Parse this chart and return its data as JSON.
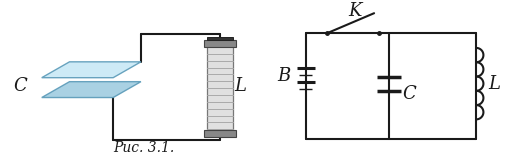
{
  "fig_width": 5.19,
  "fig_height": 1.65,
  "dpi": 100,
  "background": "#ffffff",
  "caption": "Рис. 3.1.",
  "caption_fontsize": 10,
  "label_C_left": "C",
  "label_L_left": "L",
  "label_B": "B",
  "label_K": "K",
  "label_C_right": "C",
  "label_L_right": "L",
  "line_color": "#1a1a1a",
  "lw": 1.5,
  "plate_top_color": "#c8e8f5",
  "plate_bot_color": "#a0cce0",
  "plate_edge_color": "#5a9ab8",
  "coil_fill": "#e0e0e0",
  "coil_line": "#888888",
  "coil_cap_fill": "#888888"
}
